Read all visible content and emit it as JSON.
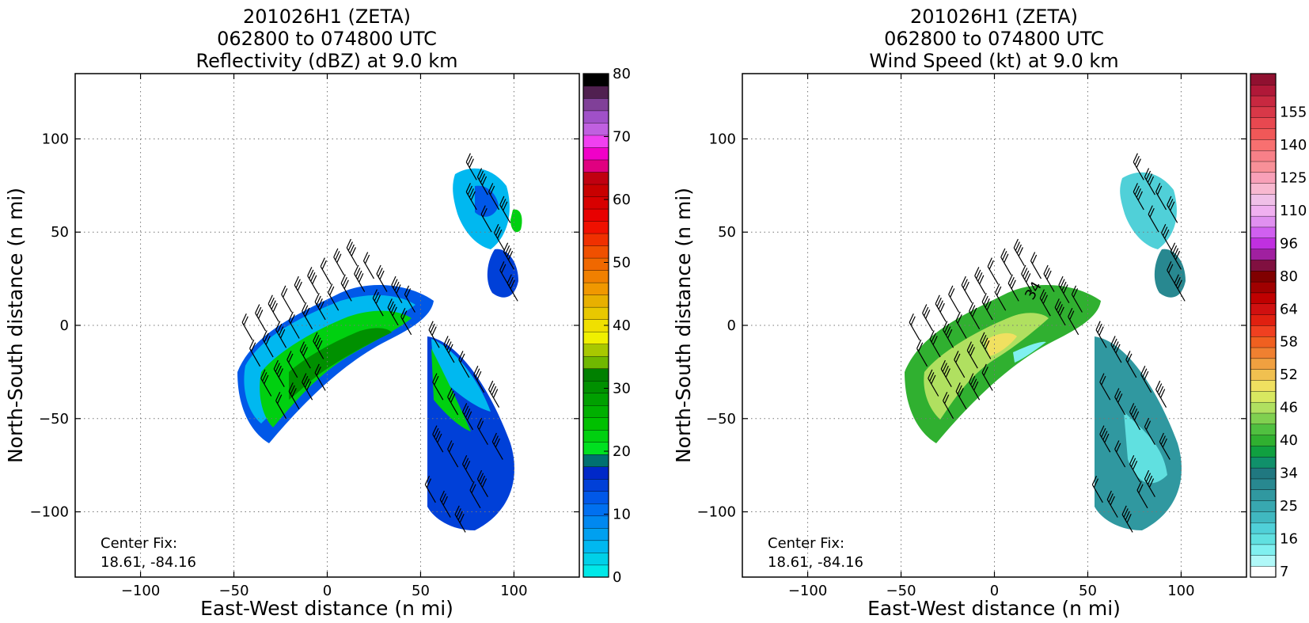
{
  "chart_data": [
    {
      "type": "heatmap",
      "title_lines": [
        "201026H1 (ZETA)",
        "062800 to 074800 UTC",
        "Reflectivity (dBZ) at 9.0 km"
      ],
      "xlabel": "East-West distance (n mi)",
      "ylabel": "North-South distance (n mi)",
      "xlim": [
        -135,
        135
      ],
      "ylim": [
        -135,
        135
      ],
      "xticks": [
        -100,
        -50,
        0,
        50,
        100
      ],
      "yticks": [
        -100,
        -50,
        0,
        50,
        100
      ],
      "grid": true,
      "center_fix_label": "Center Fix:",
      "center_fix_value": "18.61, -84.16",
      "colorbar": {
        "min": 0,
        "max": 80,
        "ticks": [
          0,
          10,
          20,
          30,
          40,
          50,
          60,
          70,
          80
        ],
        "colors": [
          "#00e8e8",
          "#00d0e8",
          "#00b8f0",
          "#00a0f0",
          "#0088f0",
          "#0070f0",
          "#0058e8",
          "#0040d8",
          "#0028c8",
          "#007070",
          "#00e020",
          "#00d010",
          "#00c000",
          "#00b000",
          "#00a000",
          "#009000",
          "#008000",
          "#70b800",
          "#a8c800",
          "#f0f000",
          "#f0e000",
          "#e8c800",
          "#e8b000",
          "#f09800",
          "#f08000",
          "#f06800",
          "#f05000",
          "#f03000",
          "#f01000",
          "#e80000",
          "#d80000",
          "#c80000",
          "#c00010",
          "#e00080",
          "#f000c8",
          "#f040f0",
          "#c060e0",
          "#a050c8",
          "#804098",
          "#502050",
          "#000000"
        ]
      },
      "barb_speed_bins": [
        34,
        50,
        64
      ]
    },
    {
      "type": "heatmap",
      "title_lines": [
        "201026H1 (ZETA)",
        "062800 to 074800 UTC",
        "Wind Speed (kt) at 9.0 km"
      ],
      "xlabel": "East-West distance (n mi)",
      "ylabel": "North-South distance (n mi)",
      "xlim": [
        -135,
        135
      ],
      "ylim": [
        -135,
        135
      ],
      "xticks": [
        -100,
        -50,
        0,
        50,
        100
      ],
      "yticks": [
        -100,
        -50,
        0,
        50,
        100
      ],
      "grid": true,
      "center_fix_label": "Center Fix:",
      "center_fix_value": "18.61, -84.16",
      "contour_label": "34",
      "colorbar": {
        "labels": [
          "7",
          "16",
          "25",
          "34",
          "40",
          "46",
          "52",
          "58",
          "64",
          "80",
          "96",
          "110",
          "125",
          "140",
          "155"
        ],
        "label_bins": [
          0,
          3,
          6,
          9,
          12,
          15,
          18,
          21,
          24,
          27,
          30,
          33,
          36,
          39,
          42
        ],
        "colors": [
          "#ffffff",
          "#b0f8f8",
          "#80f0f0",
          "#60e0e0",
          "#50d0d8",
          "#40b8c0",
          "#38a8b0",
          "#3098a0",
          "#288890",
          "#207880",
          "#10906a",
          "#10a040",
          "#30b030",
          "#50c040",
          "#80d050",
          "#b0e060",
          "#d8e860",
          "#f0e060",
          "#f0c050",
          "#f0a040",
          "#f08030",
          "#f06020",
          "#f04020",
          "#e02010",
          "#d01010",
          "#c00000",
          "#a00000",
          "#800000",
          "#801040",
          "#a020a0",
          "#c030e0",
          "#d060f0",
          "#e090f0",
          "#f0b0f0",
          "#f0c0e8",
          "#f8b8d0",
          "#f8a0b8",
          "#f89098",
          "#f88088",
          "#f87070",
          "#f05858",
          "#e84850",
          "#d83848",
          "#c82840",
          "#b01838",
          "#901030"
        ]
      }
    }
  ]
}
